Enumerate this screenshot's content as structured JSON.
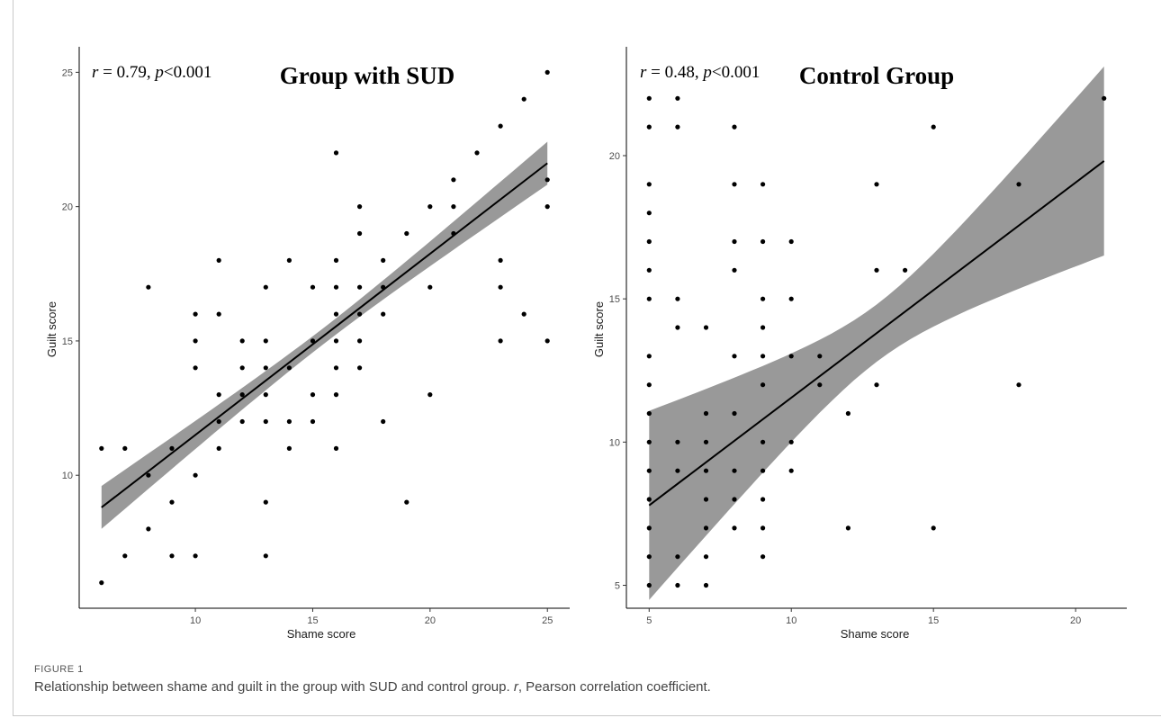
{
  "figure": {
    "label": "FIGURE 1",
    "caption_before": "Relationship between shame and guilt in the group with SUD and control group. ",
    "caption_r": "r",
    "caption_after": ", Pearson correlation coefficient."
  },
  "chart_data": [
    {
      "type": "scatter",
      "title": "Group with SUD",
      "stat": {
        "r_symbol": "r",
        "r_text": " = 0.79, ",
        "p_symbol": "p",
        "p_text": "<0.001"
      },
      "xlabel": "Shame score",
      "ylabel": "Guilt score",
      "xlim": [
        5.05,
        25.95
      ],
      "ylim": [
        5.05,
        25.95
      ],
      "xticks": [
        10,
        15,
        20,
        25
      ],
      "yticks": [
        10,
        15,
        20,
        25
      ],
      "grid": false,
      "fit": {
        "slope": 0.6744,
        "intercept": 4.757,
        "x_range": [
          6,
          25
        ],
        "ci_halfwidth_ends": 0.8,
        "ci_halfwidth_mid": 0.3
      },
      "points": [
        [
          6,
          11
        ],
        [
          6,
          6
        ],
        [
          7,
          11
        ],
        [
          7,
          7
        ],
        [
          8,
          17
        ],
        [
          8,
          10
        ],
        [
          8,
          8
        ],
        [
          9,
          11
        ],
        [
          9,
          9
        ],
        [
          9,
          7
        ],
        [
          10,
          16
        ],
        [
          10,
          15
        ],
        [
          10,
          14
        ],
        [
          10,
          10
        ],
        [
          10,
          7
        ],
        [
          11,
          18
        ],
        [
          11,
          16
        ],
        [
          11,
          13
        ],
        [
          11,
          12
        ],
        [
          11,
          11
        ],
        [
          12,
          15
        ],
        [
          12,
          14
        ],
        [
          12,
          13
        ],
        [
          12,
          12
        ],
        [
          13,
          17
        ],
        [
          13,
          15
        ],
        [
          13,
          14
        ],
        [
          13,
          13
        ],
        [
          13,
          12
        ],
        [
          13,
          9
        ],
        [
          13,
          7
        ],
        [
          14,
          18
        ],
        [
          14,
          14
        ],
        [
          14,
          12
        ],
        [
          14,
          11
        ],
        [
          15,
          17
        ],
        [
          15,
          15
        ],
        [
          15,
          13
        ],
        [
          15,
          12
        ],
        [
          16,
          22
        ],
        [
          16,
          18
        ],
        [
          16,
          17
        ],
        [
          16,
          16
        ],
        [
          16,
          15
        ],
        [
          16,
          14
        ],
        [
          16,
          13
        ],
        [
          16,
          11
        ],
        [
          17,
          20
        ],
        [
          17,
          19
        ],
        [
          17,
          17
        ],
        [
          17,
          16
        ],
        [
          17,
          15
        ],
        [
          17,
          14
        ],
        [
          18,
          18
        ],
        [
          18,
          17
        ],
        [
          18,
          16
        ],
        [
          18,
          12
        ],
        [
          19,
          19
        ],
        [
          19,
          9
        ],
        [
          20,
          20
        ],
        [
          20,
          17
        ],
        [
          20,
          13
        ],
        [
          21,
          21
        ],
        [
          21,
          20
        ],
        [
          21,
          19
        ],
        [
          22,
          22
        ],
        [
          23,
          23
        ],
        [
          23,
          18
        ],
        [
          23,
          17
        ],
        [
          23,
          15
        ],
        [
          24,
          24
        ],
        [
          24,
          16
        ],
        [
          25,
          25
        ],
        [
          25,
          21
        ],
        [
          25,
          20
        ],
        [
          25,
          15
        ]
      ]
    },
    {
      "type": "scatter",
      "title": "Control Group",
      "stat": {
        "r_symbol": "r",
        "r_text": " = 0.48, ",
        "p_symbol": "p",
        "p_text": "<0.001"
      },
      "xlabel": "Shame score",
      "ylabel": "Guilt score",
      "xlim": [
        4.2,
        21.8
      ],
      "ylim": [
        4.2,
        23.8
      ],
      "xticks": [
        5,
        10,
        15,
        20
      ],
      "yticks": [
        5,
        10,
        15,
        20
      ],
      "grid": false,
      "fit": {
        "slope": 0.7513,
        "intercept": 4.035,
        "x_range": [
          5,
          21
        ],
        "ci_halfwidth_ends": 3.3,
        "ci_halfwidth_mid": 1.0
      },
      "points": [
        [
          5,
          22
        ],
        [
          5,
          21
        ],
        [
          5,
          19
        ],
        [
          5,
          18
        ],
        [
          5,
          17
        ],
        [
          5,
          16
        ],
        [
          5,
          15
        ],
        [
          5,
          13
        ],
        [
          5,
          12
        ],
        [
          5,
          11
        ],
        [
          5,
          10
        ],
        [
          5,
          9
        ],
        [
          5,
          8
        ],
        [
          5,
          7
        ],
        [
          5,
          6
        ],
        [
          5,
          5
        ],
        [
          6,
          22
        ],
        [
          6,
          21
        ],
        [
          6,
          15
        ],
        [
          6,
          14
        ],
        [
          6,
          10
        ],
        [
          6,
          9
        ],
        [
          6,
          6
        ],
        [
          6,
          5
        ],
        [
          7,
          14
        ],
        [
          7,
          11
        ],
        [
          7,
          10
        ],
        [
          7,
          9
        ],
        [
          7,
          8
        ],
        [
          7,
          7
        ],
        [
          7,
          6
        ],
        [
          7,
          5
        ],
        [
          8,
          21
        ],
        [
          8,
          19
        ],
        [
          8,
          17
        ],
        [
          8,
          16
        ],
        [
          8,
          13
        ],
        [
          8,
          11
        ],
        [
          8,
          9
        ],
        [
          8,
          8
        ],
        [
          8,
          7
        ],
        [
          9,
          19
        ],
        [
          9,
          17
        ],
        [
          9,
          15
        ],
        [
          9,
          14
        ],
        [
          9,
          13
        ],
        [
          9,
          12
        ],
        [
          9,
          10
        ],
        [
          9,
          9
        ],
        [
          9,
          8
        ],
        [
          9,
          7
        ],
        [
          9,
          6
        ],
        [
          10,
          17
        ],
        [
          10,
          15
        ],
        [
          10,
          13
        ],
        [
          10,
          10
        ],
        [
          10,
          9
        ],
        [
          11,
          13
        ],
        [
          11,
          12
        ],
        [
          12,
          11
        ],
        [
          12,
          7
        ],
        [
          13,
          19
        ],
        [
          13,
          16
        ],
        [
          13,
          12
        ],
        [
          14,
          16
        ],
        [
          15,
          21
        ],
        [
          15,
          7
        ],
        [
          18,
          19
        ],
        [
          18,
          12
        ],
        [
          21,
          22
        ]
      ]
    }
  ]
}
